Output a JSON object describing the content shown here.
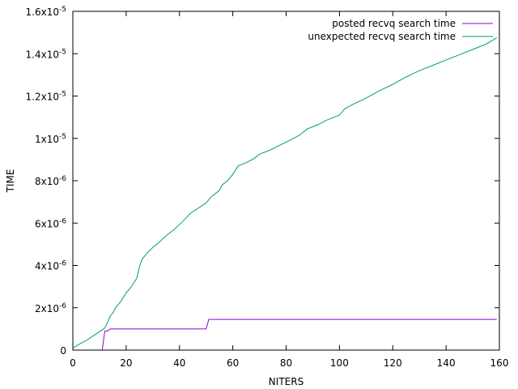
{
  "chart_data": {
    "type": "line",
    "title": "",
    "xlabel": "NITERS",
    "ylabel": "TIME",
    "xlim": [
      0,
      160
    ],
    "ylim": [
      0,
      1.6e-05
    ],
    "x_ticks": [
      {
        "value": 0,
        "label": "0"
      },
      {
        "value": 20,
        "label": "20"
      },
      {
        "value": 40,
        "label": "40"
      },
      {
        "value": 60,
        "label": "60"
      },
      {
        "value": 80,
        "label": "80"
      },
      {
        "value": 100,
        "label": "100"
      },
      {
        "value": 120,
        "label": "120"
      },
      {
        "value": 140,
        "label": "140"
      },
      {
        "value": 160,
        "label": "160"
      }
    ],
    "y_ticks": [
      {
        "value": 0,
        "mant": "0",
        "exp": ""
      },
      {
        "value": 2e-06,
        "mant": "2x10",
        "exp": "-6"
      },
      {
        "value": 4e-06,
        "mant": "4x10",
        "exp": "-6"
      },
      {
        "value": 6e-06,
        "mant": "6x10",
        "exp": "-6"
      },
      {
        "value": 8e-06,
        "mant": "8x10",
        "exp": "-6"
      },
      {
        "value": 1e-05,
        "mant": "1x10",
        "exp": "-5"
      },
      {
        "value": 1.2e-05,
        "mant": "1.2x10",
        "exp": "-5"
      },
      {
        "value": 1.4e-05,
        "mant": "1.4x10",
        "exp": "-5"
      },
      {
        "value": 1.6e-05,
        "mant": "1.6x10",
        "exp": "-5"
      }
    ],
    "grid": false,
    "legend_position": "top-right",
    "series": [
      {
        "name": "posted recvq search time",
        "color": "#9400d3",
        "points": [
          [
            0,
            0
          ],
          [
            11,
            0
          ],
          [
            12,
            9e-07
          ],
          [
            13,
            9e-07
          ],
          [
            14,
            1e-06
          ],
          [
            50,
            1e-06
          ],
          [
            51,
            1.45e-06
          ],
          [
            159,
            1.45e-06
          ]
        ]
      },
      {
        "name": "unexpected recvq search time",
        "color": "#009e73",
        "points": [
          [
            0,
            1e-07
          ],
          [
            2,
            2.5e-07
          ],
          [
            5,
            4.5e-07
          ],
          [
            8,
            7e-07
          ],
          [
            11,
            9.5e-07
          ],
          [
            12,
            1.05e-06
          ],
          [
            13,
            1.3e-06
          ],
          [
            14,
            1.6e-06
          ],
          [
            15,
            1.75e-06
          ],
          [
            16,
            2e-06
          ],
          [
            18,
            2.3e-06
          ],
          [
            20,
            2.7e-06
          ],
          [
            22,
            3e-06
          ],
          [
            24,
            3.4e-06
          ],
          [
            25,
            3.95e-06
          ],
          [
            26,
            4.3e-06
          ],
          [
            28,
            4.6e-06
          ],
          [
            30,
            4.85e-06
          ],
          [
            32,
            5.05e-06
          ],
          [
            35,
            5.4e-06
          ],
          [
            38,
            5.7e-06
          ],
          [
            41,
            6.05e-06
          ],
          [
            44,
            6.45e-06
          ],
          [
            47,
            6.7e-06
          ],
          [
            50,
            6.95e-06
          ],
          [
            52,
            7.25e-06
          ],
          [
            55,
            7.55e-06
          ],
          [
            56,
            7.8e-06
          ],
          [
            58,
            8e-06
          ],
          [
            60,
            8.3e-06
          ],
          [
            62,
            8.7e-06
          ],
          [
            65,
            8.85e-06
          ],
          [
            68,
            9.05e-06
          ],
          [
            70,
            9.25e-06
          ],
          [
            74,
            9.45e-06
          ],
          [
            78,
            9.7e-06
          ],
          [
            82,
            9.95e-06
          ],
          [
            85,
            1.015e-05
          ],
          [
            88,
            1.045e-05
          ],
          [
            92,
            1.065e-05
          ],
          [
            95,
            1.085e-05
          ],
          [
            100,
            1.11e-05
          ],
          [
            102,
            1.14e-05
          ],
          [
            105,
            1.16e-05
          ],
          [
            110,
            1.19e-05
          ],
          [
            115,
            1.225e-05
          ],
          [
            120,
            1.255e-05
          ],
          [
            125,
            1.29e-05
          ],
          [
            130,
            1.32e-05
          ],
          [
            135,
            1.345e-05
          ],
          [
            140,
            1.37e-05
          ],
          [
            145,
            1.395e-05
          ],
          [
            150,
            1.42e-05
          ],
          [
            155,
            1.445e-05
          ],
          [
            159,
            1.475e-05
          ]
        ]
      }
    ]
  }
}
